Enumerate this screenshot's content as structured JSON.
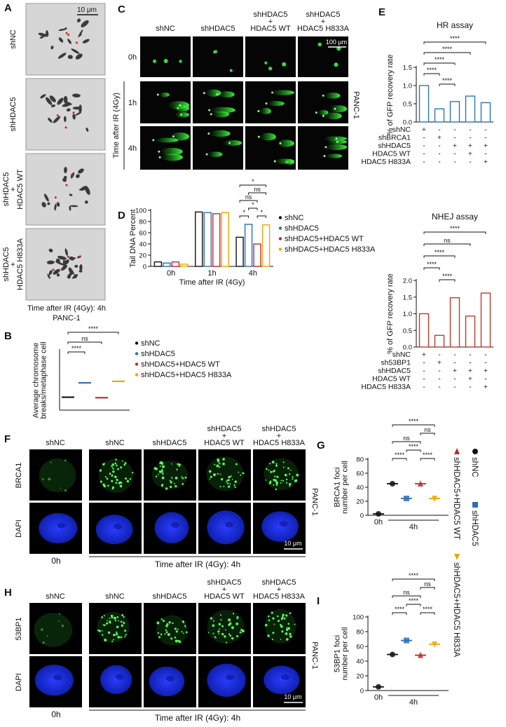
{
  "panels": {
    "A": {
      "label": "A",
      "rows": [
        [
          "shNC"
        ],
        [
          "shHDAC5"
        ],
        [
          "shHDAC5",
          "+",
          "HDAC5 WT"
        ],
        [
          "shHDAC5",
          "+",
          "HDAC5 H833A"
        ]
      ],
      "scale": "10 μm",
      "caption": [
        "Time after IR (4Gy): 4h",
        "PANC-1"
      ]
    },
    "C": {
      "label": "C",
      "columns": [
        [
          "shNC"
        ],
        [
          "shHDAC5"
        ],
        [
          "shHDAC5",
          "+",
          "HDAC5 WT"
        ],
        [
          "shHDAC5",
          "+",
          "HDAC5 H833A"
        ]
      ],
      "rows": [
        "0h",
        "1h",
        "4h"
      ],
      "row_axis": "Time after IR (4Gy)",
      "scale": "100 μm",
      "cell_line": "PANC-1"
    },
    "F": {
      "label": "F",
      "columns": [
        [
          "shNC"
        ],
        [
          "shNC"
        ],
        [
          "shHDAC5"
        ],
        [
          "shHDAC5",
          "+",
          "HDAC5 WT"
        ],
        [
          "shHDAC5",
          "+",
          "HDAC5 H833A"
        ]
      ],
      "rows": [
        "BRCA1",
        "DAPI"
      ],
      "time_0": "0h",
      "time_ir": "Time after IR (4Gy): 4h",
      "scale": "10 μm",
      "cell_line": "PANC-1"
    },
    "H": {
      "label": "H",
      "columns": [
        [
          "shNC"
        ],
        [
          "shNC"
        ],
        [
          "shHDAC5"
        ],
        [
          "shHDAC5",
          "+",
          "HDAC5 WT"
        ],
        [
          "shHDAC5",
          "+",
          "HDAC5 H833A"
        ]
      ],
      "rows": [
        "53BP1",
        "DAPI"
      ],
      "time_0": "0h",
      "time_ir": "Time after IR (4Gy): 4h",
      "scale": "10 μm",
      "cell_line": "PANC-1"
    }
  },
  "chart_data": [
    {
      "type": "mean_dot",
      "label": "B",
      "y_label": [
        "Average chromosome",
        "breaks/metaphase cell"
      ],
      "ylim": [
        0,
        12
      ],
      "series": [
        {
          "name": "shNC",
          "color": "#111111",
          "values": [
            2.6
          ]
        },
        {
          "name": "shHDAC5",
          "color": "#2e6db4",
          "values": [
            5.5
          ]
        },
        {
          "name": "shHDAC5+HDAC5 WT",
          "color": "#c0282d",
          "values": [
            2.5
          ]
        },
        {
          "name": "shHDAC5+HDAC5 H833A",
          "color": "#f0a500",
          "values": [
            5.8
          ]
        }
      ],
      "annotations": [
        "****",
        "ns",
        "****"
      ]
    },
    {
      "type": "grouped_bar",
      "label": "D",
      "y_label": [
        "Tail DNA Percent"
      ],
      "x_label": "Time after IR (4Gy)",
      "categories": [
        "0h",
        "1h",
        "4h"
      ],
      "ylim": [
        0,
        100
      ],
      "yticks": [
        0,
        20,
        40,
        60,
        80,
        100
      ],
      "series": [
        {
          "name": "shNC",
          "color": "#111111",
          "values": [
            8,
            97,
            52
          ]
        },
        {
          "name": "shHDAC5",
          "color": "#2e6db4",
          "values": [
            6,
            96,
            75
          ]
        },
        {
          "name": "shHDAC5+HDAC5 WT",
          "color": "#c0282d",
          "values": [
            8,
            94,
            40
          ]
        },
        {
          "name": "shHDAC5+HDAC5 H833A",
          "color": "#f0a500",
          "values": [
            4,
            96,
            74
          ]
        }
      ],
      "annotations": [
        "*",
        "ns",
        "ns",
        "*",
        "*",
        "*"
      ]
    },
    {
      "type": "bar",
      "label": "E",
      "title": "HR assay",
      "y_label": [
        "% of GFP recovery rate"
      ],
      "color": "#2e75b6",
      "values": [
        1.0,
        0.36,
        0.56,
        0.71,
        0.53
      ],
      "ylim": [
        0,
        1.5
      ],
      "yticks": [
        {
          "value": 0,
          "label": "0.0"
        },
        0.5,
        {
          "value": 1,
          "label": "1.0"
        },
        1.5
      ],
      "conditions": [
        {
          "name": "shNC",
          "marks": [
            "+",
            "-",
            "-",
            "-",
            "-"
          ]
        },
        {
          "name": "shBRCA1",
          "marks": [
            "-",
            "+",
            "-",
            "-",
            "-"
          ]
        },
        {
          "name": "shHDAC5",
          "marks": [
            "-",
            "-",
            "+",
            "+",
            "+"
          ]
        },
        {
          "name": "HDAC5 WT",
          "marks": [
            "-",
            "-",
            "-",
            "+",
            "-"
          ]
        },
        {
          "name": "HDAC5 H833A",
          "marks": [
            "-",
            "-",
            "-",
            "-",
            "+"
          ]
        }
      ],
      "annotations": [
        "****",
        "****",
        "****",
        "****",
        "****"
      ]
    },
    {
      "type": "bar",
      "title": "NHEJ assay",
      "y_label": [
        "% of GFP recovery rate"
      ],
      "color": "#c0392b",
      "values": [
        1.0,
        0.35,
        1.48,
        0.93,
        1.62
      ],
      "ylim": [
        0,
        2
      ],
      "yticks": [
        {
          "value": 0,
          "label": "0.0"
        },
        0.5,
        {
          "value": 1,
          "label": "1.0"
        },
        1.5,
        {
          "value": 2,
          "label": "2.0"
        }
      ],
      "conditions": [
        {
          "name": "shNC",
          "marks": [
            "+",
            "-",
            "-",
            "-",
            "-"
          ]
        },
        {
          "name": "sh53BP1",
          "marks": [
            "-",
            "+",
            "-",
            "-",
            "-"
          ]
        },
        {
          "name": "shHDAC5",
          "marks": [
            "-",
            "-",
            "+",
            "+",
            "+"
          ]
        },
        {
          "name": "HDAC5 WT",
          "marks": [
            "-",
            "-",
            "-",
            "+",
            "-"
          ]
        },
        {
          "name": "HDAC5 H833A",
          "marks": [
            "-",
            "-",
            "-",
            "-",
            "+"
          ]
        }
      ],
      "annotations": [
        "****",
        "ns",
        "****",
        "****",
        "****"
      ]
    },
    {
      "type": "dot_group",
      "label": "G",
      "y_label": [
        "BRCA1 foci",
        "number per cell"
      ],
      "categories": [
        "0h",
        "4h"
      ],
      "ylim": [
        0,
        80
      ],
      "yticks": [
        0,
        20,
        40,
        60,
        80
      ],
      "series": [
        {
          "name": "shNC",
          "marker": "circle",
          "color": "#111111",
          "values": [
            2,
            45
          ]
        },
        {
          "name": "shHDAC5",
          "marker": "square",
          "color": "#2e6db4",
          "values": [
            null,
            24
          ]
        },
        {
          "name": "shHDAC5+HDAC5 WT",
          "marker": "triangle-up",
          "color": "#c0282d",
          "values": [
            null,
            45
          ]
        },
        {
          "name": "shHDAC5+HDAC5 H833A",
          "marker": "triangle-down",
          "color": "#f0a500",
          "values": [
            null,
            24
          ]
        }
      ],
      "annotations": [
        "****",
        "ns",
        "ns",
        "****",
        "****",
        "****"
      ]
    },
    {
      "type": "dot_group",
      "label": "I",
      "y_label": [
        "53BP1 foci",
        "number per cell"
      ],
      "categories": [
        "0h",
        "4h"
      ],
      "ylim": [
        0,
        100
      ],
      "yticks": [
        0,
        20,
        40,
        60,
        80,
        100
      ],
      "series": [
        {
          "marker": "circle",
          "color": "#111111",
          "values": [
            5,
            49
          ]
        },
        {
          "marker": "square",
          "color": "#2e6db4",
          "values": [
            null,
            68
          ]
        },
        {
          "marker": "triangle-up",
          "color": "#c0282d",
          "values": [
            null,
            48
          ]
        },
        {
          "marker": "triangle-down",
          "color": "#f0a500",
          "values": [
            null,
            63
          ]
        }
      ],
      "annotations": [
        "****",
        "ns",
        "ns",
        "****",
        "****",
        "****"
      ]
    }
  ]
}
